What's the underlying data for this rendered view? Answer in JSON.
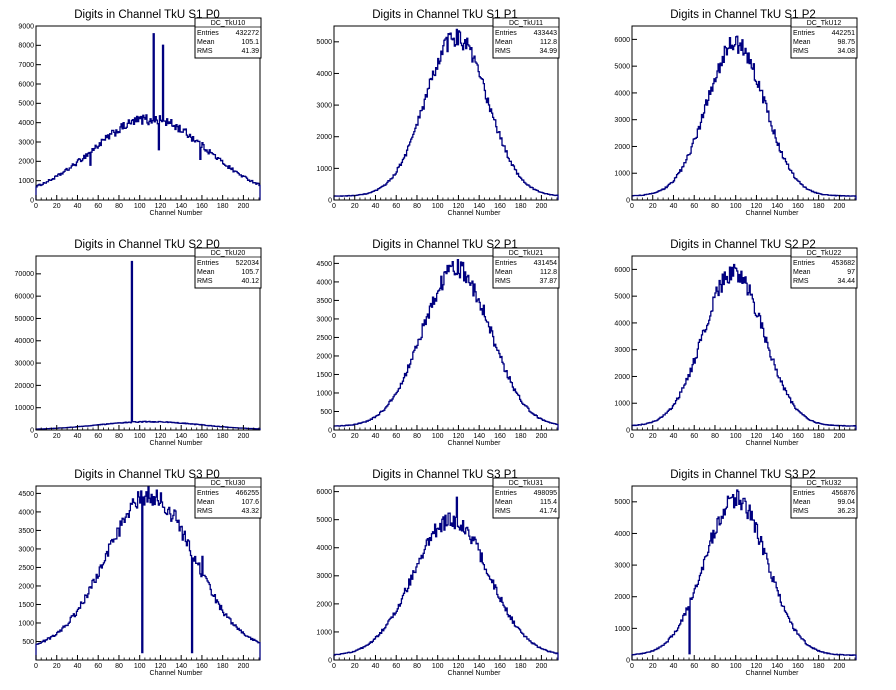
{
  "colors": {
    "line": "#000080",
    "axis": "#000000",
    "frame": "#000000",
    "background": "#ffffff"
  },
  "panels": [
    {
      "title": "Digits in Channel TkU S1 P0",
      "xlabel": "Channel Number",
      "stats": {
        "name": "DC_TkU10",
        "rows": [
          [
            "Entries",
            "432272"
          ],
          [
            "Mean",
            "105.1"
          ],
          [
            "RMS",
            "41.39"
          ]
        ]
      },
      "xticks": [
        0,
        20,
        40,
        60,
        80,
        100,
        120,
        140,
        160,
        180,
        200
      ],
      "yticks": [
        0,
        1000,
        2000,
        3000,
        4000,
        5000,
        6000,
        7000,
        8000,
        9000
      ]
    },
    {
      "title": "Digits in Channel TkU S1 P1",
      "xlabel": "Channel Number",
      "stats": {
        "name": "DC_TkU11",
        "rows": [
          [
            "Entries",
            "433443"
          ],
          [
            "Mean",
            "112.8"
          ],
          [
            "RMS",
            "34.99"
          ]
        ]
      },
      "xticks": [
        0,
        20,
        40,
        60,
        80,
        100,
        120,
        140,
        160,
        180,
        200
      ],
      "yticks": [
        0,
        1000,
        2000,
        3000,
        4000,
        5000
      ]
    },
    {
      "title": "Digits in Channel TkU S1 P2",
      "xlabel": "Channel Number",
      "stats": {
        "name": "DC_TkU12",
        "rows": [
          [
            "Entries",
            "442251"
          ],
          [
            "Mean",
            "98.75"
          ],
          [
            "RMS",
            "34.08"
          ]
        ]
      },
      "xticks": [
        0,
        20,
        40,
        60,
        80,
        100,
        120,
        140,
        160,
        180,
        200
      ],
      "yticks": [
        0,
        1000,
        2000,
        3000,
        4000,
        5000,
        6000
      ]
    },
    {
      "title": "Digits in Channel TkU S2 P0",
      "xlabel": "Channel Number",
      "stats": {
        "name": "DC_TkU20",
        "rows": [
          [
            "Entries",
            "522034"
          ],
          [
            "Mean",
            "105.7"
          ],
          [
            "RMS",
            "40.12"
          ]
        ]
      },
      "xticks": [
        0,
        20,
        40,
        60,
        80,
        100,
        120,
        140,
        160,
        180,
        200
      ],
      "yticks": [
        0,
        10000,
        20000,
        30000,
        40000,
        50000,
        60000,
        70000
      ]
    },
    {
      "title": "Digits in Channel TkU S2 P1",
      "xlabel": "Channel Number",
      "stats": {
        "name": "DC_TkU21",
        "rows": [
          [
            "Entries",
            "431454"
          ],
          [
            "Mean",
            "112.8"
          ],
          [
            "RMS",
            "37.87"
          ]
        ]
      },
      "xticks": [
        0,
        20,
        40,
        60,
        80,
        100,
        120,
        140,
        160,
        180,
        200
      ],
      "yticks": [
        0,
        500,
        1000,
        1500,
        2000,
        2500,
        3000,
        3500,
        4000,
        4500
      ]
    },
    {
      "title": "Digits in Channel TkU S2 P2",
      "xlabel": "Channel Number",
      "stats": {
        "name": "DC_TkU22",
        "rows": [
          [
            "Entries",
            "453682"
          ],
          [
            "Mean",
            "97"
          ],
          [
            "RMS",
            "34.44"
          ]
        ]
      },
      "xticks": [
        0,
        20,
        40,
        60,
        80,
        100,
        120,
        140,
        160,
        180,
        200
      ],
      "yticks": [
        0,
        1000,
        2000,
        3000,
        4000,
        5000,
        6000
      ]
    },
    {
      "title": "Digits in Channel TkU S3 P0",
      "xlabel": "Channel Number",
      "stats": {
        "name": "DC_TkU30",
        "rows": [
          [
            "Entries",
            "466255"
          ],
          [
            "Mean",
            "107.6"
          ],
          [
            "RMS",
            "43.32"
          ]
        ]
      },
      "xticks": [
        0,
        20,
        40,
        60,
        80,
        100,
        120,
        140,
        160,
        180,
        200
      ],
      "yticks": [
        500,
        1000,
        1500,
        2000,
        2500,
        3000,
        3500,
        4000,
        4500
      ]
    },
    {
      "title": "Digits in Channel TkU S3 P1",
      "xlabel": "Channel Number",
      "stats": {
        "name": "DC_TkU31",
        "rows": [
          [
            "Entries",
            "498095"
          ],
          [
            "Mean",
            "115.4"
          ],
          [
            "RMS",
            "41.74"
          ]
        ]
      },
      "xticks": [
        0,
        20,
        40,
        60,
        80,
        100,
        120,
        140,
        160,
        180,
        200
      ],
      "yticks": [
        0,
        1000,
        2000,
        3000,
        4000,
        5000,
        6000
      ]
    },
    {
      "title": "Digits in Channel TkU S3 P2",
      "xlabel": "Channel Number",
      "stats": {
        "name": "DC_TkU32",
        "rows": [
          [
            "Entries",
            "456876"
          ],
          [
            "Mean",
            "99.04"
          ],
          [
            "RMS",
            "36.23"
          ]
        ]
      },
      "xticks": [
        0,
        20,
        40,
        60,
        80,
        100,
        120,
        140,
        160,
        180,
        200
      ],
      "yticks": [
        0,
        1000,
        2000,
        3000,
        4000,
        5000
      ]
    }
  ],
  "chart_data": [
    {
      "type": "histogram",
      "title": "Digits in Channel TkU S1 P0",
      "xlabel": "Channel Number",
      "ylabel": "",
      "xlim": [
        0,
        216
      ],
      "ylim": [
        0,
        9000
      ],
      "grid": false,
      "legend": "top-right",
      "peak_x": 110,
      "peak_y": 4200,
      "sigma": 55,
      "base": 150,
      "spikes": [
        [
          52,
          1800
        ],
        [
          108,
          3900
        ],
        [
          110,
          4200
        ],
        [
          113,
          8600
        ],
        [
          118,
          2600
        ],
        [
          122,
          8000
        ],
        [
          158,
          2100
        ]
      ]
    },
    {
      "type": "histogram",
      "title": "Digits in Channel TkU S1 P1",
      "xlabel": "Channel Number",
      "ylabel": "",
      "xlim": [
        0,
        216
      ],
      "ylim": [
        0,
        5500
      ],
      "grid": false,
      "legend": "top-right",
      "peak_x": 118,
      "peak_y": 5150,
      "sigma": 30,
      "base": 120,
      "spikes": []
    },
    {
      "type": "histogram",
      "title": "Digits in Channel TkU S1 P2",
      "xlabel": "Channel Number",
      "ylabel": "",
      "xlim": [
        0,
        216
      ],
      "ylim": [
        0,
        6500
      ],
      "grid": false,
      "legend": "top-right",
      "peak_x": 100,
      "peak_y": 5850,
      "sigma": 28,
      "base": 150,
      "spikes": []
    },
    {
      "type": "histogram",
      "title": "Digits in Channel TkU S2 P0",
      "xlabel": "Channel Number",
      "ylabel": "",
      "xlim": [
        0,
        216
      ],
      "ylim": [
        0,
        78000
      ],
      "grid": false,
      "legend": "top-right",
      "peak_x": 110,
      "peak_y": 3700,
      "sigma": 50,
      "base": 100,
      "spikes": [
        [
          92,
          75500
        ]
      ]
    },
    {
      "type": "histogram",
      "title": "Digits in Channel TkU S2 P1",
      "xlabel": "Channel Number",
      "ylabel": "",
      "xlim": [
        0,
        216
      ],
      "ylim": [
        0,
        4700
      ],
      "grid": false,
      "legend": "top-right",
      "peak_x": 118,
      "peak_y": 4350,
      "sigma": 33,
      "base": 100,
      "spikes": []
    },
    {
      "type": "histogram",
      "title": "Digits in Channel TkU S2 P2",
      "xlabel": "Channel Number",
      "ylabel": "",
      "xlim": [
        0,
        216
      ],
      "ylim": [
        0,
        6500
      ],
      "grid": false,
      "legend": "top-right",
      "peak_x": 98,
      "peak_y": 5900,
      "sigma": 29,
      "base": 150,
      "spikes": []
    },
    {
      "type": "histogram",
      "title": "Digits in Channel TkU S3 P0",
      "xlabel": "Channel Number",
      "ylabel": "",
      "xlim": [
        0,
        216
      ],
      "ylim": [
        0,
        4700
      ],
      "grid": false,
      "legend": "top-right",
      "peak_x": 110,
      "peak_y": 4450,
      "sigma": 42,
      "base": 300,
      "spikes": [
        [
          102,
          200
        ],
        [
          150,
          200
        ],
        [
          160,
          2800
        ]
      ]
    },
    {
      "type": "histogram",
      "title": "Digits in Channel TkU S3 P1",
      "xlabel": "Channel Number",
      "ylabel": "",
      "xlim": [
        0,
        216
      ],
      "ylim": [
        0,
        6200
      ],
      "grid": false,
      "legend": "top-right",
      "peak_x": 113,
      "peak_y": 5000,
      "sigma": 36,
      "base": 150,
      "spikes": [
        [
          118,
          5800
        ],
        [
          112,
          4800
        ]
      ]
    },
    {
      "type": "histogram",
      "title": "Digits in Channel TkU S3 P2",
      "xlabel": "Channel Number",
      "ylabel": "",
      "xlim": [
        0,
        216
      ],
      "ylim": [
        0,
        5500
      ],
      "grid": false,
      "legend": "top-right",
      "peak_x": 100,
      "peak_y": 5100,
      "sigma": 30,
      "base": 150,
      "spikes": [
        [
          42,
          900
        ],
        [
          55,
          200
        ]
      ]
    }
  ]
}
